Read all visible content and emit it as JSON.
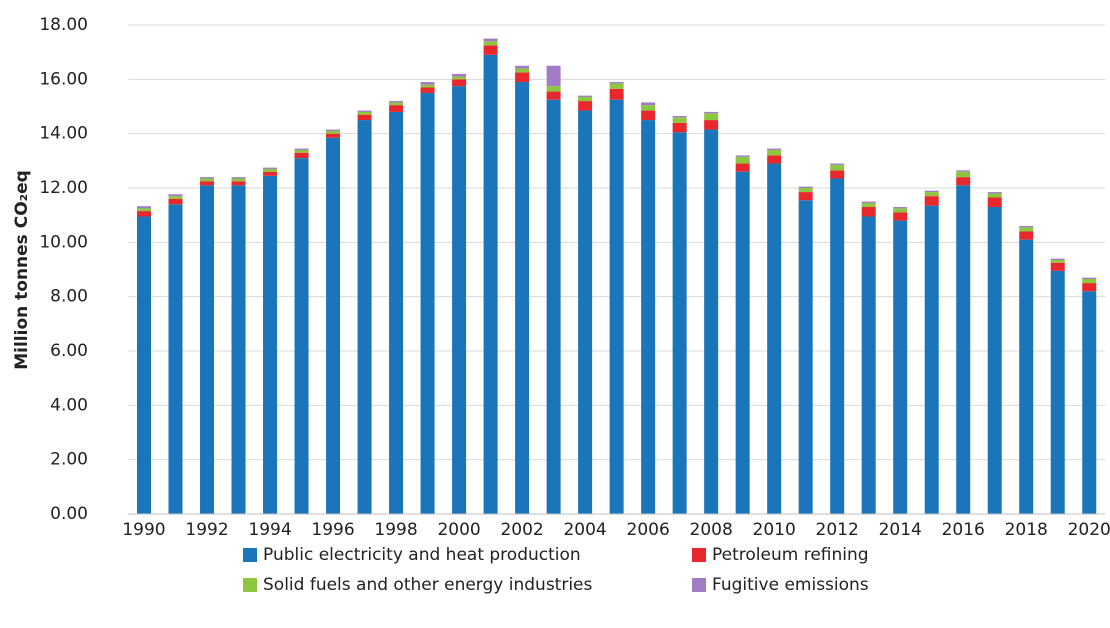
{
  "chart_data": {
    "type": "stacked_bar",
    "y_label": "Million tonnes CO₂eq",
    "categories": [
      "1990",
      null,
      "1992",
      null,
      "1994",
      null,
      "1996",
      null,
      "1998",
      null,
      "2000",
      null,
      "2002",
      null,
      "2004",
      null,
      "2006",
      null,
      "2008",
      null,
      "2010",
      null,
      "2012",
      null,
      "2014",
      null,
      "2016",
      null,
      "2018",
      null,
      "2020"
    ],
    "series": [
      {
        "name": "Public electricity and heat production",
        "color": "#1a75bb",
        "values": [
          10.95,
          11.4,
          12.1,
          12.1,
          12.45,
          13.1,
          13.85,
          14.5,
          14.8,
          15.5,
          15.75,
          16.9,
          15.9,
          15.25,
          14.85,
          15.25,
          14.5,
          14.05,
          14.15,
          12.6,
          12.9,
          11.55,
          12.35,
          10.95,
          10.8,
          11.35,
          12.1,
          11.3,
          10.1,
          8.95,
          8.2
        ]
      },
      {
        "name": "Petroleum refining",
        "color": "#e8282c",
        "values": [
          0.2,
          0.2,
          0.15,
          0.15,
          0.15,
          0.2,
          0.15,
          0.2,
          0.25,
          0.2,
          0.25,
          0.35,
          0.35,
          0.3,
          0.35,
          0.4,
          0.35,
          0.35,
          0.35,
          0.3,
          0.3,
          0.3,
          0.3,
          0.35,
          0.3,
          0.35,
          0.3,
          0.35,
          0.3,
          0.3,
          0.3
        ]
      },
      {
        "name": "Solid fuels and other energy industries",
        "color": "#8dc63f",
        "values": [
          0.1,
          0.1,
          0.1,
          0.1,
          0.1,
          0.1,
          0.1,
          0.1,
          0.1,
          0.1,
          0.1,
          0.15,
          0.15,
          0.2,
          0.15,
          0.2,
          0.2,
          0.2,
          0.25,
          0.25,
          0.2,
          0.15,
          0.2,
          0.15,
          0.15,
          0.15,
          0.2,
          0.15,
          0.15,
          0.1,
          0.15
        ]
      },
      {
        "name": "Fugitive emissions",
        "color": "#a07cc5",
        "values": [
          0.08,
          0.07,
          0.05,
          0.05,
          0.05,
          0.05,
          0.05,
          0.05,
          0.05,
          0.1,
          0.1,
          0.1,
          0.1,
          0.75,
          0.05,
          0.05,
          0.1,
          0.05,
          0.05,
          0.05,
          0.05,
          0.05,
          0.05,
          0.05,
          0.05,
          0.05,
          0.05,
          0.05,
          0.05,
          0.05,
          0.05
        ]
      }
    ],
    "ylim": [
      0,
      18
    ],
    "yticks": [
      {
        "value": 0,
        "label": "0.00"
      },
      {
        "value": 2,
        "label": "2.00"
      },
      {
        "value": 4,
        "label": "4.00"
      },
      {
        "value": 6,
        "label": "6.00"
      },
      {
        "value": 8,
        "label": "8.00"
      },
      {
        "value": 10,
        "label": "10.00"
      },
      {
        "value": 12,
        "label": "12.00"
      },
      {
        "value": 14,
        "label": "14.00"
      },
      {
        "value": 16,
        "label": "16.00"
      },
      {
        "value": 18,
        "label": "18.00"
      }
    ],
    "grid": true
  }
}
